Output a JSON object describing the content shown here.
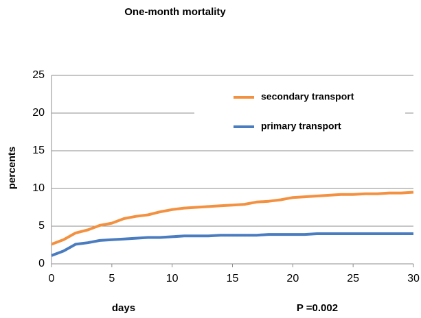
{
  "chart_data": {
    "type": "line",
    "title": "One-month mortality",
    "x_label": "days",
    "y_label": "percents",
    "annotation": "P =0.002",
    "x": [
      0,
      1,
      2,
      3,
      4,
      5,
      6,
      7,
      8,
      9,
      10,
      11,
      12,
      13,
      14,
      15,
      16,
      17,
      18,
      19,
      20,
      21,
      22,
      23,
      24,
      25,
      26,
      27,
      28,
      29,
      30
    ],
    "series": [
      {
        "name": "secondary transport",
        "color": "#f39140",
        "values": [
          2.6,
          3.2,
          4.1,
          4.5,
          5.1,
          5.4,
          6.0,
          6.3,
          6.5,
          6.9,
          7.2,
          7.4,
          7.5,
          7.6,
          7.7,
          7.8,
          7.9,
          8.2,
          8.3,
          8.5,
          8.8,
          8.9,
          9.0,
          9.1,
          9.2,
          9.2,
          9.3,
          9.3,
          9.4,
          9.4,
          9.5
        ]
      },
      {
        "name": "primary transport",
        "color": "#4a7cc0",
        "values": [
          1.1,
          1.7,
          2.6,
          2.8,
          3.1,
          3.2,
          3.3,
          3.4,
          3.5,
          3.5,
          3.6,
          3.7,
          3.7,
          3.7,
          3.8,
          3.8,
          3.8,
          3.8,
          3.9,
          3.9,
          3.9,
          3.9,
          4.0,
          4.0,
          4.0,
          4.0,
          4.0,
          4.0,
          4.0,
          4.0,
          4.0
        ]
      }
    ],
    "xlim": [
      0,
      30
    ],
    "xticks": [
      0,
      5,
      10,
      15,
      20,
      25,
      30
    ],
    "ylim": [
      0,
      25
    ],
    "yticks": [
      0,
      5,
      10,
      15,
      20,
      25
    ],
    "grid": true,
    "legend": "upper right"
  }
}
